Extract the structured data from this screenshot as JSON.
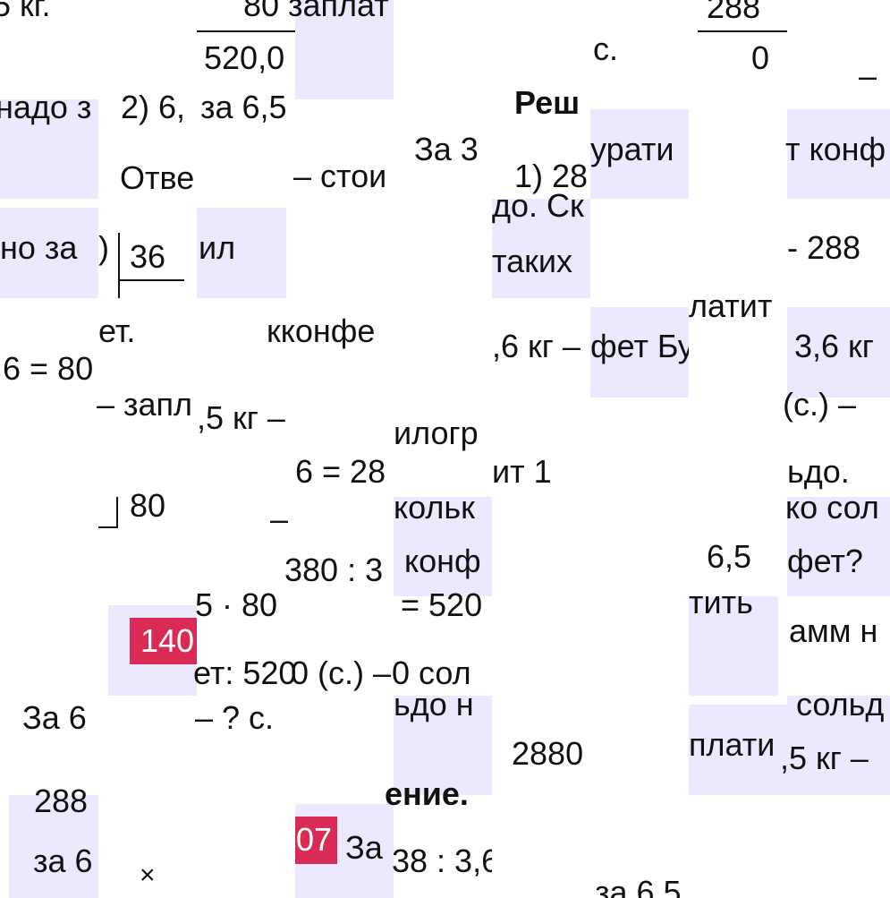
{
  "colors": {
    "tile_highlight": "#ebe9fd",
    "badge": "#d92b55",
    "text": "#111111"
  },
  "fragments": {
    "r0_a": "5 кг.",
    "r0_b": "80",
    "r0_c": "520,0",
    "r0_d": "заплат",
    "r0_e": "с.",
    "r0_f": "288",
    "r0_g": "0",
    "r0_h": "–",
    "r1_a": "надо з",
    "r1_b": "2) 6,",
    "r1_c": "за 6,5",
    "r1_d": "Отве",
    "r1_e": "– стои",
    "r1_f": "За 3",
    "r1_g": "Реш",
    "r1_h": "1) 28",
    "r1_i": "урати",
    "r1_j": "т конф",
    "r2_a": "но за",
    "r2_b": ")",
    "r2_c": "36",
    "r2_d": "ил",
    "r2_e": "до. Ск",
    "r2_f": "таких",
    "r2_g": "- 288",
    "r2_h": "латит",
    "r3_a": "ет.",
    "r3_b": "кконфе",
    "r3_c": "6 = 80",
    "r3_d": ",6 кг –",
    "r3_e": "фет Бу",
    "r3_f": "3,6 кг",
    "r4_a": "– запл",
    "r4_b": ",5 кг –",
    "r4_c": "илогр",
    "r4_d": "6 = 28",
    "r4_e": "ит 1",
    "r4_f": "(с.) –",
    "r4_g": "ьдо.",
    "r5_a": "80",
    "r5_b": "кольк",
    "r5_c": "конф",
    "r5_d": "380 : 3",
    "r5_e": "6,5",
    "r5_f": "ко сол",
    "r5_g": "фет?",
    "r5_h": "–",
    "r6_a": "140",
    "r6_b": "5 · 80",
    "r6_c": "ет: 520",
    "r6_d": "0 (с.) –",
    "r6_e": "= 520",
    "r6_f": "0 сол",
    "r6_g": "тить",
    "r6_h": "амм н",
    "r7_a": "За 6",
    "r7_b": "– ? с.",
    "r7_c": "ьдо н",
    "r7_d": "2880",
    "r7_e": "плати",
    "r7_f": "сольд",
    "r7_g": ",5 кг –",
    "r8_a": "288",
    "r8_b": "за 6",
    "r8_c": "×",
    "r8_d": "07",
    "r8_e": "За",
    "r8_f": "ение.",
    "r8_g": "38 : 3,6",
    "r8_h": "за 6,5"
  }
}
